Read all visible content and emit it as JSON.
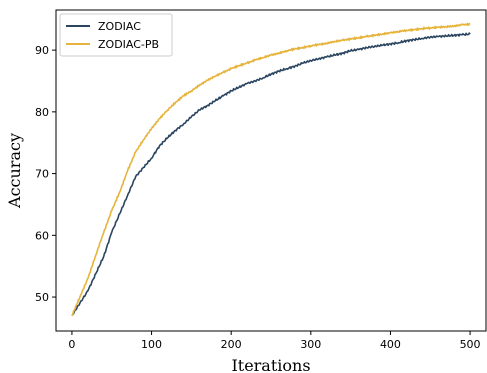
{
  "chart_data": {
    "type": "line",
    "xlabel": "Iterations",
    "ylabel": "Accuracy",
    "xlim": [
      -20,
      520
    ],
    "ylim": [
      44.5,
      96.5
    ],
    "xticks": [
      0,
      100,
      200,
      300,
      400,
      500
    ],
    "yticks": [
      50,
      60,
      70,
      80,
      90
    ],
    "grid": false,
    "legend_position": "top-left",
    "x": [
      0,
      10,
      20,
      30,
      40,
      50,
      60,
      70,
      80,
      90,
      100,
      110,
      120,
      130,
      140,
      150,
      160,
      170,
      180,
      190,
      200,
      210,
      220,
      230,
      240,
      250,
      260,
      270,
      280,
      290,
      300,
      310,
      320,
      330,
      340,
      350,
      360,
      370,
      380,
      390,
      400,
      410,
      420,
      430,
      440,
      450,
      460,
      470,
      480,
      490,
      500
    ],
    "series": [
      {
        "name": "ZODIAC",
        "color": "#2b4560",
        "values": [
          47.0,
          49.0,
          51.0,
          53.8,
          56.6,
          60.5,
          63.5,
          66.5,
          69.5,
          71.0,
          72.5,
          74.5,
          75.8,
          77.0,
          78.0,
          79.2,
          80.3,
          81.0,
          81.8,
          82.6,
          83.4,
          84.0,
          84.6,
          85.0,
          85.5,
          86.1,
          86.6,
          87.0,
          87.4,
          87.9,
          88.3,
          88.6,
          88.9,
          89.2,
          89.5,
          89.9,
          90.1,
          90.4,
          90.6,
          90.8,
          91.0,
          91.2,
          91.5,
          91.7,
          91.9,
          92.1,
          92.2,
          92.3,
          92.4,
          92.5,
          92.6
        ]
      },
      {
        "name": "ZODIAC-PB",
        "color": "#e6b43c",
        "values": [
          47.0,
          50.0,
          53.0,
          56.8,
          60.5,
          64.0,
          67.0,
          70.5,
          73.5,
          75.5,
          77.3,
          78.9,
          80.3,
          81.5,
          82.6,
          83.4,
          84.3,
          85.1,
          85.8,
          86.4,
          87.0,
          87.5,
          87.9,
          88.4,
          88.8,
          89.2,
          89.5,
          89.9,
          90.2,
          90.4,
          90.7,
          90.9,
          91.1,
          91.4,
          91.6,
          91.8,
          92.0,
          92.2,
          92.4,
          92.6,
          92.8,
          93.0,
          93.2,
          93.3,
          93.5,
          93.6,
          93.7,
          93.8,
          93.9,
          94.1,
          94.2
        ]
      }
    ]
  }
}
